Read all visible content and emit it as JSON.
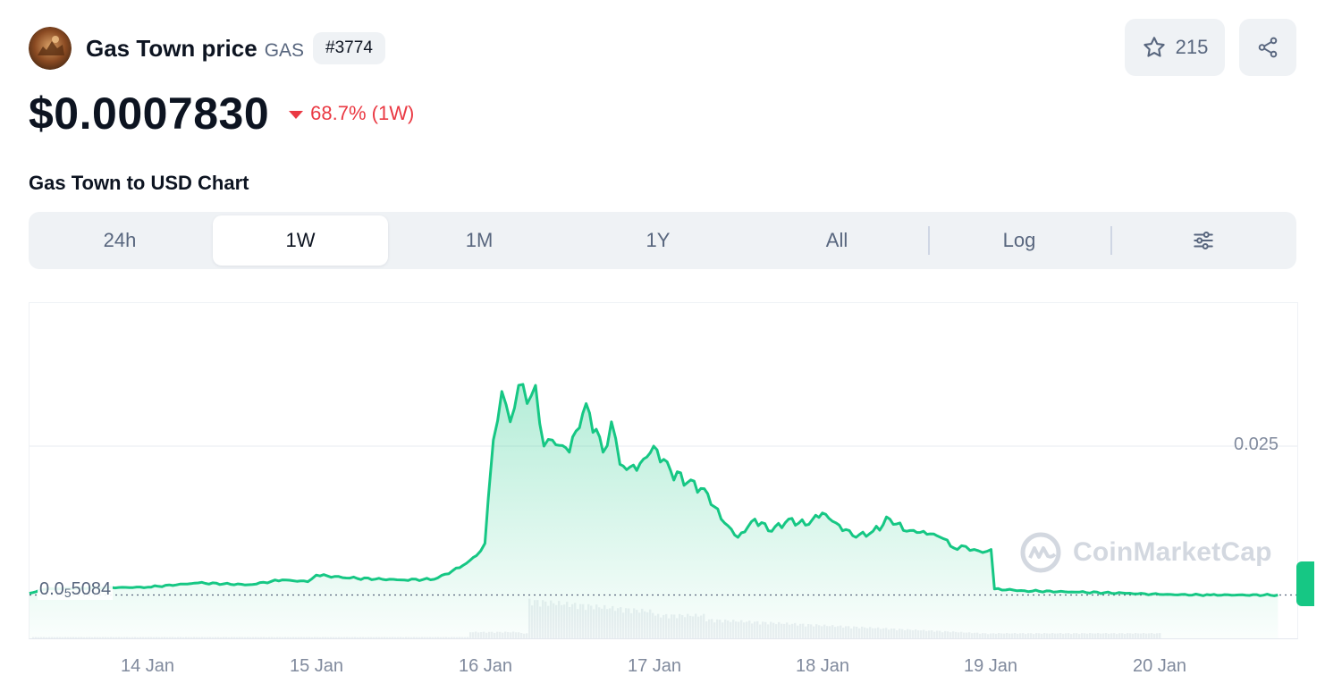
{
  "coin": {
    "name": "Gas Town price",
    "symbol": "GAS",
    "rank": "#3774",
    "watchlist_count": "215",
    "logo_icon": "gas-town-logo-icon"
  },
  "price": {
    "value": "$0.0007830",
    "change": "68.7% (1W)",
    "direction": "down",
    "color_down": "#ea3943"
  },
  "chart_section": {
    "title": "Gas Town to USD Chart",
    "tabs": [
      {
        "label": "24h",
        "active": false
      },
      {
        "label": "1W",
        "active": true
      },
      {
        "label": "1M",
        "active": false
      },
      {
        "label": "1Y",
        "active": false
      },
      {
        "label": "All",
        "active": false
      },
      {
        "label": "Log",
        "active": false
      }
    ],
    "settings_icon": "sliders-icon"
  },
  "chart_data": {
    "type": "area",
    "x_labels": [
      "14 Jan",
      "15 Jan",
      "16 Jan",
      "17 Jan",
      "18 Jan",
      "19 Jan",
      "20 Jan"
    ],
    "x": [
      13.3,
      13.4,
      13.7,
      14.0,
      14.3,
      14.6,
      14.8,
      14.95,
      15.0,
      15.2,
      15.5,
      15.7,
      15.85,
      15.95,
      16.0,
      16.02,
      16.05,
      16.1,
      16.15,
      16.2,
      16.25,
      16.3,
      16.35,
      16.4,
      16.5,
      16.6,
      16.7,
      16.75,
      16.8,
      16.9,
      17.0,
      17.1,
      17.2,
      17.3,
      17.4,
      17.5,
      17.6,
      17.7,
      17.8,
      17.9,
      18.0,
      18.1,
      18.2,
      18.3,
      18.4,
      18.5,
      18.6,
      18.7,
      18.8,
      18.85,
      18.9,
      18.95,
      19.0,
      19.02,
      19.2,
      19.5,
      19.8,
      20.0,
      20.3,
      20.7
    ],
    "values": [
      0.0008,
      0.0015,
      0.0017,
      0.0018,
      0.0025,
      0.0022,
      0.003,
      0.0027,
      0.0038,
      0.0033,
      0.003,
      0.0031,
      0.005,
      0.007,
      0.009,
      0.0165,
      0.026,
      0.034,
      0.029,
      0.035,
      0.032,
      0.035,
      0.025,
      0.026,
      0.024,
      0.032,
      0.024,
      0.029,
      0.022,
      0.021,
      0.025,
      0.021,
      0.019,
      0.018,
      0.013,
      0.01,
      0.013,
      0.011,
      0.013,
      0.012,
      0.014,
      0.012,
      0.01,
      0.011,
      0.013,
      0.011,
      0.011,
      0.01,
      0.008,
      0.0085,
      0.008,
      0.0075,
      0.008,
      0.0015,
      0.0012,
      0.001,
      0.0008,
      0.0006,
      0.00052,
      0.00051
    ],
    "y_ticks": [
      {
        "label": "0.025",
        "value": 0.025
      }
    ],
    "baseline": {
      "value": 0.0005084,
      "label_main": "0.0",
      "label_sub": "5",
      "label_end": "5084"
    },
    "ylim": [
      0,
      0.0395
    ],
    "line_color": "#16c784",
    "volume_shown": true,
    "watermark": "CoinMarketCap",
    "grid": "horizontal",
    "legend": "none"
  }
}
